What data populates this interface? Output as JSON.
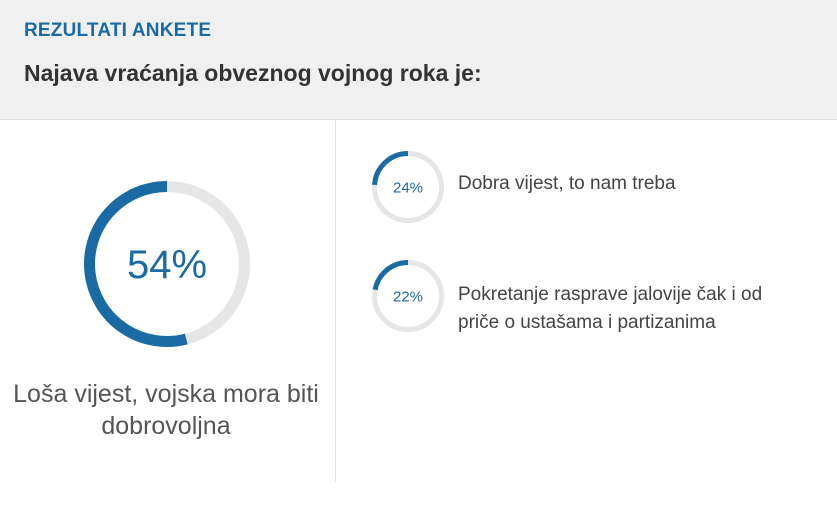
{
  "header": {
    "kicker": "REZULTATI ANKETE",
    "question": "Najava vraćanja obveznog vojnog roka je:"
  },
  "colors": {
    "accent": "#1a6aa3",
    "ring_track": "#e6e6e6",
    "header_bg": "#f0f0f0"
  },
  "chart_data": {
    "type": "donut",
    "title": "Najava vraćanja obveznog vojnog roka je:",
    "unit": "%",
    "results": [
      {
        "label": "Loša vijest, vojska mora biti dobrovoljna",
        "value": 54,
        "value_label": "54%"
      },
      {
        "label": "Dobra vijest, to nam treba",
        "value": 24,
        "value_label": "24%"
      },
      {
        "label": "Pokretanje rasprave jalovije čak i od priče o ustašama i partizanima",
        "value": 22,
        "value_label": "22%"
      }
    ]
  }
}
